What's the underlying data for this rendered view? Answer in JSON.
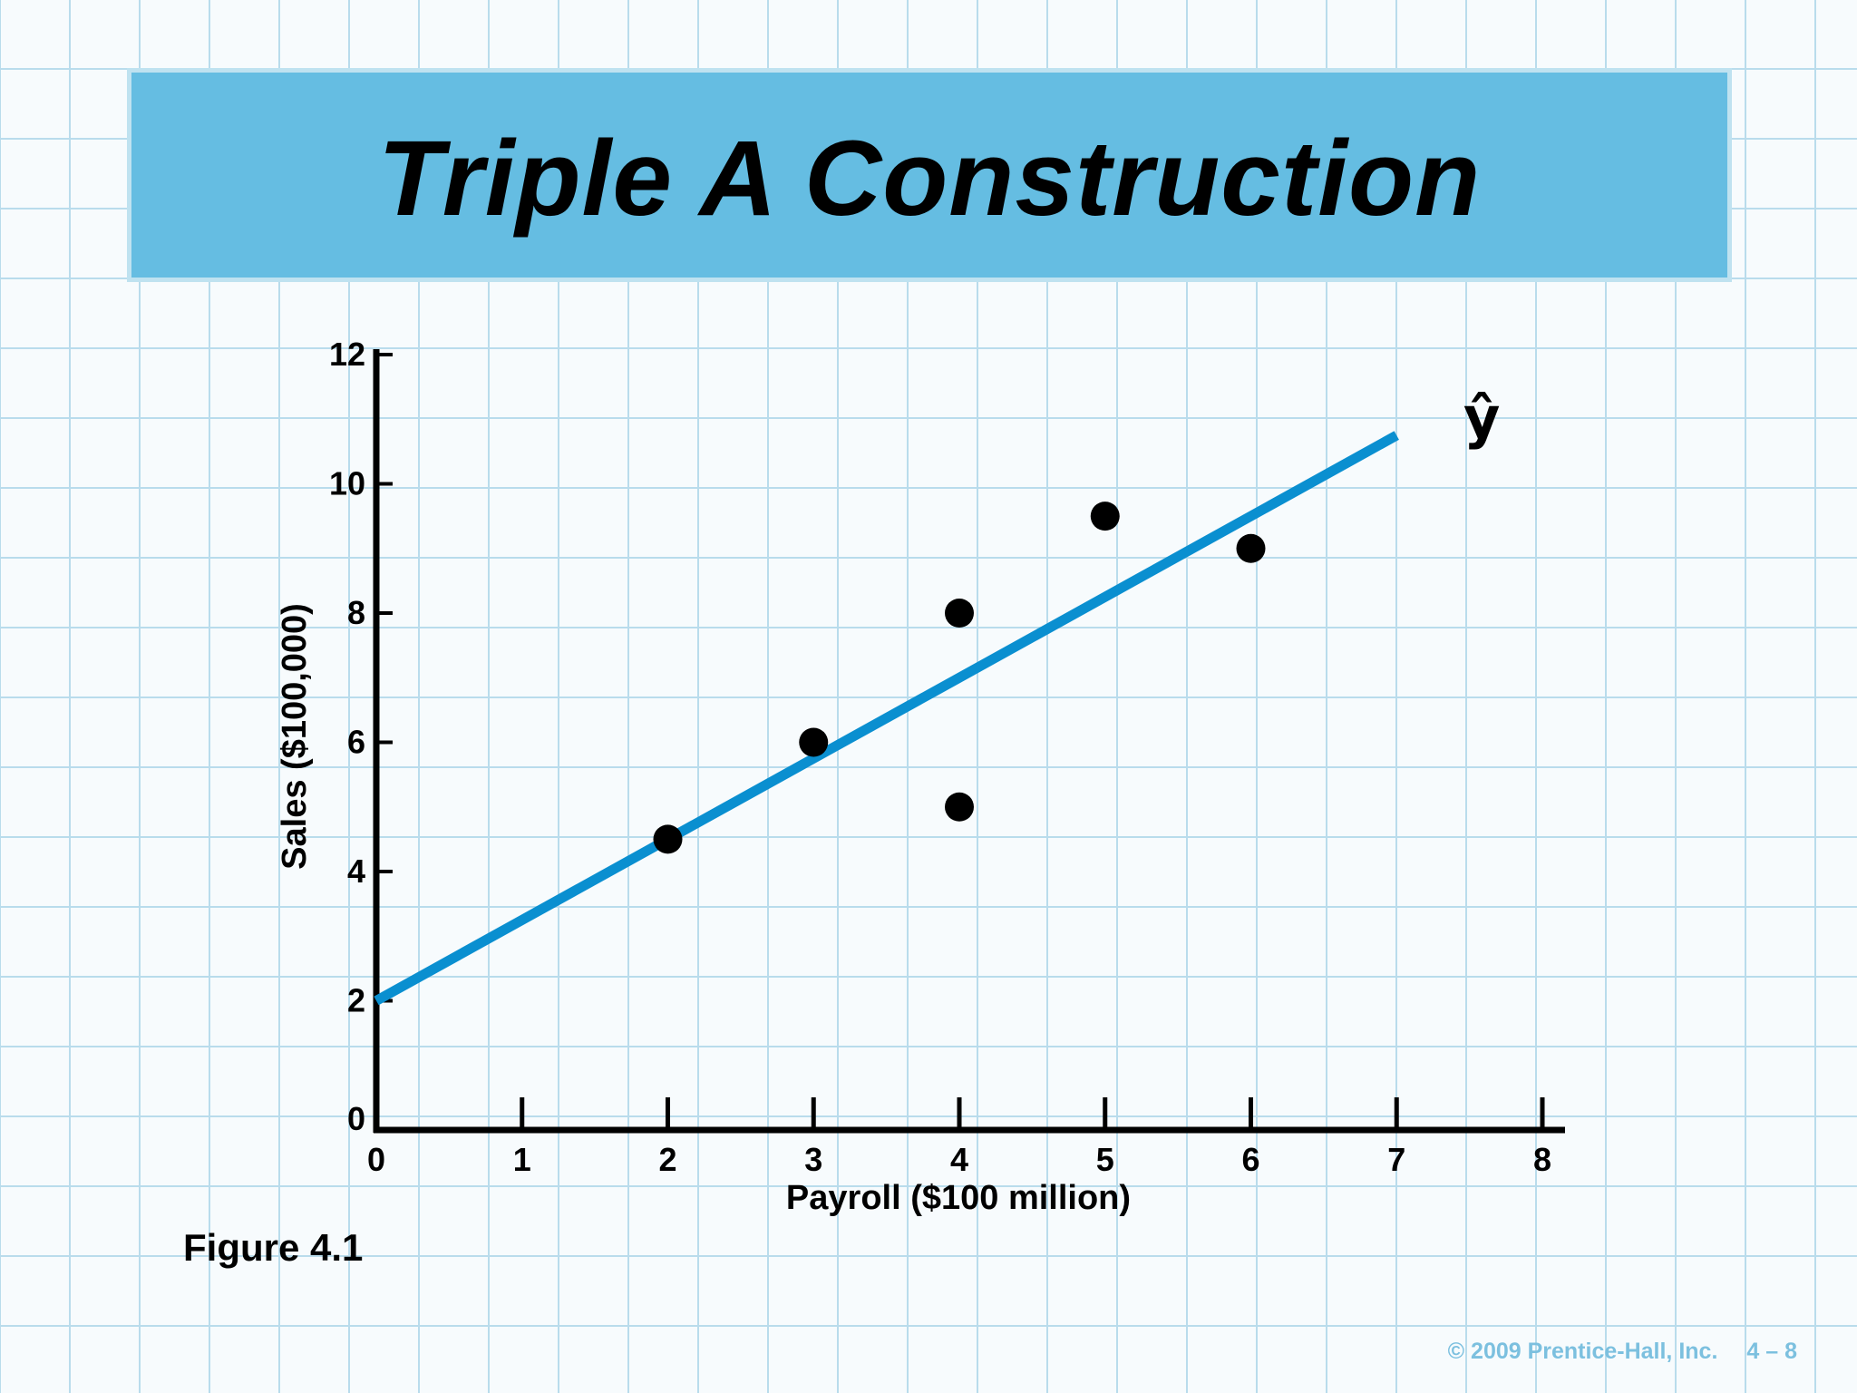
{
  "slide": {
    "title": "Triple A Construction",
    "figure_label": "Figure 4.1",
    "copyright": "© 2009 Prentice-Hall, Inc.",
    "page_number": "4 – 8"
  },
  "colors": {
    "title_bar": "#65bde2",
    "regression_line": "#0a8fd0",
    "points": "#000000",
    "grid": "#b9dcec",
    "footer": "#7cc0df"
  },
  "chart_data": {
    "type": "scatter",
    "xlabel": "Payroll ($100 million)",
    "ylabel": "Sales ($100,000)",
    "xlim": [
      0,
      8
    ],
    "ylim": [
      0,
      12
    ],
    "x_ticks": [
      0,
      1,
      2,
      3,
      4,
      5,
      6,
      7,
      8
    ],
    "y_ticks": [
      0,
      2,
      4,
      6,
      8,
      10,
      12
    ],
    "points": [
      {
        "x": 2,
        "y": 4.5
      },
      {
        "x": 3,
        "y": 6
      },
      {
        "x": 4,
        "y": 8
      },
      {
        "x": 4,
        "y": 5
      },
      {
        "x": 5,
        "y": 9.5
      },
      {
        "x": 6,
        "y": 9
      }
    ],
    "regression_line": {
      "label": "ŷ",
      "x_start": 0,
      "y_start": 2,
      "x_end": 7,
      "y_end": 10.75
    }
  }
}
